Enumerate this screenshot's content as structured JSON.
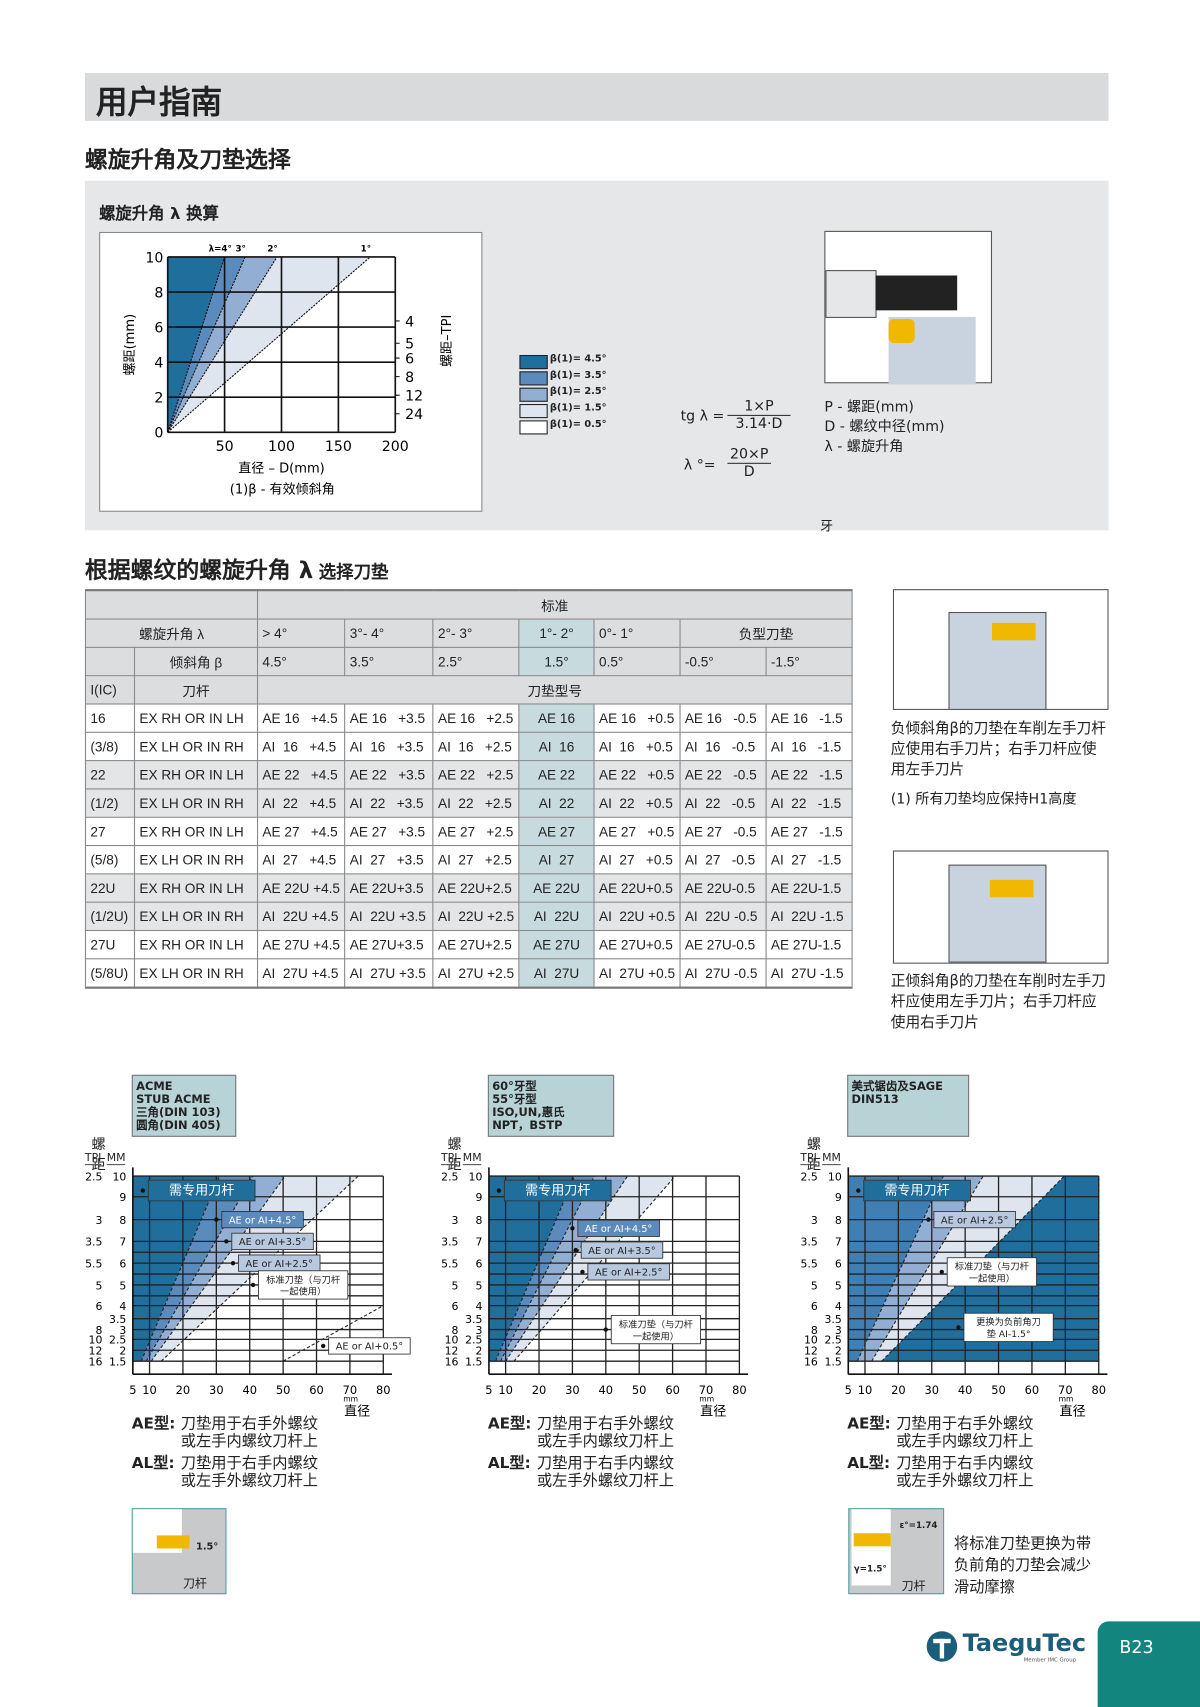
{
  "header": {
    "title": "用户指南"
  },
  "section1": {
    "title": "螺旋升角及刀垫选择",
    "subtitle": "螺旋升角 λ 换算",
    "footnote": "(1)β - 有效倾斜角",
    "formula1": {
      "lhs": "tg λ =",
      "num": "1×P",
      "den": "3.14·D"
    },
    "formula2": {
      "lhs": "λ °=",
      "num": "20×P",
      "den": "D"
    },
    "legend_defs": [
      "P - 螺距(mm)",
      "D - 螺纹中径(mm)",
      "λ - 螺旋升角"
    ],
    "stray": "牙",
    "colors": {
      "dark": "#1f6e9c",
      "mid": "#5b8bbd",
      "light": "#93aed3",
      "lightest": "#dfe5ef",
      "white": "#ffffff"
    }
  },
  "chart_data": [
    {
      "type": "area",
      "xlabel": "直径 – D(mm)",
      "ylabel": "螺距(mm)",
      "y2label": "螺距–TPI",
      "xlim": [
        0,
        200
      ],
      "ylim": [
        0,
        10
      ],
      "xticks": [
        0,
        50,
        100,
        150,
        200
      ],
      "yticks": [
        0,
        2,
        4,
        6,
        8,
        10
      ],
      "y2ticks_tpi": [
        4,
        5,
        6,
        8,
        12,
        24
      ],
      "grid": true,
      "top_labels": [
        "λ=4°",
        "3°",
        "2°",
        "1°"
      ],
      "boundaries_D_at_P10": [
        50,
        68,
        96,
        178
      ],
      "legend": [
        "β(1)= 4.5°",
        "β(1)= 3.5°",
        "β(1)= 2.5°",
        "β(1)= 1.5°",
        "β(1)= 0.5°"
      ],
      "legend_placement": "right"
    },
    {
      "type": "area",
      "thread_types": [
        "ACME",
        "STUB ACME",
        "三角(DIN 103)",
        "圆角(DIN 405)"
      ],
      "ylabel": "螺距",
      "ycols": [
        "TPI",
        "MM"
      ],
      "xunit": "mm",
      "xlabel": "直径",
      "xlim": [
        5,
        80
      ],
      "xticks": [
        5,
        10,
        20,
        30,
        40,
        50,
        60,
        70,
        80
      ],
      "yticks_mm": [
        10,
        9,
        8,
        7,
        6,
        5,
        4,
        3.5,
        3,
        2.5,
        2,
        1.5
      ],
      "yticks_tpi": [
        "2.5",
        "",
        "3",
        "3.5",
        "5.5",
        "5",
        "6",
        "",
        "8",
        "10",
        "12",
        "16"
      ],
      "regions": [
        {
          "color": "#1f6e9c",
          "points": [
            [
              5,
              1.5
            ],
            [
              7.5,
              1.5
            ],
            [
              31,
              10
            ],
            [
              5,
              10
            ]
          ]
        },
        {
          "color": "#5b8bbd",
          "points": [
            [
              7.5,
              1.5
            ],
            [
              9,
              1.5
            ],
            [
              41,
              10
            ],
            [
              31,
              10
            ]
          ]
        },
        {
          "color": "#93aed3",
          "points": [
            [
              9,
              1.5
            ],
            [
              10.5,
              1.5
            ],
            [
              50.6,
              10
            ],
            [
              41,
              10
            ]
          ]
        },
        {
          "color": "#dfe5ef",
          "points": [
            [
              10.5,
              1.5
            ],
            [
              13.5,
              1.5
            ],
            [
              72.5,
              10
            ],
            [
              50.6,
              10
            ]
          ]
        }
      ],
      "lines": [
        [
          [
            50,
            1.5
          ],
          [
            80,
            4
          ]
        ]
      ],
      "annotations": [
        "需专用刀杆",
        "AE or AI+4.5°",
        "AE or AI+3.5°",
        "AE or AI+2.5°",
        "标准刀垫（与刀杆\n一起使用）",
        "AE or AI+0.5°"
      ]
    },
    {
      "type": "area",
      "thread_types": [
        "60°牙型",
        "55°牙型",
        "ISO,UN,惠氏",
        "NPT，BSTP"
      ],
      "ylabel": "螺距",
      "ycols": [
        "TPI",
        "MM"
      ],
      "xunit": "mm",
      "xlabel": "直径",
      "xlim": [
        5,
        80
      ],
      "xticks": [
        5,
        10,
        20,
        30,
        40,
        50,
        60,
        70,
        80
      ],
      "yticks_mm": [
        10,
        9,
        8,
        7,
        6,
        5,
        4,
        3.5,
        3,
        2.5,
        2,
        1.5
      ],
      "yticks_tpi": [
        "2.5",
        "",
        "3",
        "3.5",
        "5.5",
        "5",
        "6",
        "",
        "8",
        "10",
        "12",
        "16"
      ],
      "regions": [
        {
          "color": "#1f6e9c",
          "points": [
            [
              5,
              1.5
            ],
            [
              7,
              1.5
            ],
            [
              30.7,
              10
            ],
            [
              5,
              10
            ]
          ]
        },
        {
          "color": "#5b8bbd",
          "points": [
            [
              7,
              1.5
            ],
            [
              8.5,
              1.5
            ],
            [
              36.6,
              10
            ],
            [
              30.7,
              10
            ]
          ]
        },
        {
          "color": "#93aed3",
          "points": [
            [
              8.5,
              1.5
            ],
            [
              10,
              1.5
            ],
            [
              46.5,
              10
            ],
            [
              36.6,
              10
            ]
          ]
        },
        {
          "color": "#dfe5ef",
          "points": [
            [
              10,
              1.5
            ],
            [
              12.5,
              1.5
            ],
            [
              60.8,
              10
            ],
            [
              46.5,
              10
            ]
          ]
        }
      ],
      "lines": [],
      "annotations": [
        "需专用刀杆",
        "AE or AI+4.5°",
        "AE or AI+3.5°",
        "AE or AI+2.5°",
        "标准刀垫（与刀杆\n一起使用）"
      ]
    },
    {
      "type": "area",
      "thread_types": [
        "美式锯齿及SAGE",
        "DIN513"
      ],
      "ylabel": "螺距",
      "ycols": [
        "TPI",
        "MM"
      ],
      "xunit": "mm",
      "xlabel": "直径",
      "xlim": [
        5,
        80
      ],
      "xticks": [
        5,
        10,
        20,
        30,
        40,
        50,
        60,
        70,
        80
      ],
      "yticks_mm": [
        10,
        9,
        8,
        7,
        6,
        5,
        4,
        3.5,
        3,
        2.5,
        2,
        1.5
      ],
      "yticks_tpi": [
        "2.5",
        "",
        "3",
        "3.5",
        "5.5",
        "5",
        "6",
        "",
        "8",
        "10",
        "12",
        "16"
      ],
      "regions": [
        {
          "color": "#3f7fb3",
          "points": [
            [
              5,
              1.5
            ],
            [
              7.7,
              1.5
            ],
            [
              33.5,
              10
            ],
            [
              5,
              10
            ]
          ]
        },
        {
          "color": "#93aed3",
          "points": [
            [
              7.7,
              1.5
            ],
            [
              12,
              1.5
            ],
            [
              45.4,
              10
            ],
            [
              33.5,
              10
            ]
          ]
        },
        {
          "color": "#dfe5ef",
          "points": [
            [
              12,
              1.5
            ],
            [
              15,
              1.5
            ],
            [
              69.7,
              10
            ],
            [
              45.4,
              10
            ]
          ]
        },
        {
          "color": "#1f6e9c",
          "points": [
            [
              15,
              1.5
            ],
            [
              80,
              1.5
            ],
            [
              80,
              10
            ],
            [
              69.7,
              10
            ]
          ]
        }
      ],
      "lines": [],
      "annotations": [
        "需专用刀杆",
        "AE or AI+2.5°",
        "标准刀垫（与刀杆\n一起使用）",
        "更换为负前角刀\n垫 AI-1.5°"
      ]
    }
  ],
  "section2": {
    "title_main": "根据螺纹的螺旋升角 λ",
    "title_sub": "选择刀垫",
    "header_standard": "标准",
    "row_lambda": [
      "螺旋升角 λ",
      "> 4°",
      "3°- 4°",
      "2°- 3°",
      "1°- 2°",
      "0°- 1°",
      "负型刀垫"
    ],
    "row_beta": [
      "倾斜角 β",
      "4.5°",
      "3.5°",
      "2.5°",
      "1.5°",
      "0.5°",
      "-0.5°",
      "-1.5°"
    ],
    "row_cols": [
      "I(IC)",
      "刀杆",
      "刀垫型号"
    ],
    "rows": [
      [
        "16",
        "EX RH OR IN LH",
        "AE 16   +4.5",
        "AE 16   +3.5",
        "AE 16   +2.5",
        "AE 16",
        "AE 16   +0.5",
        "AE 16   -0.5",
        "AE 16   -1.5"
      ],
      [
        "(3/8)",
        "EX LH OR IN RH",
        "AI  16   +4.5",
        "AI  16   +3.5",
        "AI  16   +2.5",
        "AI  16",
        "AI  16   +0.5",
        "AI  16   -0.5",
        "AI  16   -1.5"
      ],
      [
        "22",
        "EX RH OR IN LH",
        "AE 22   +4.5",
        "AE 22   +3.5",
        "AE 22   +2.5",
        "AE 22",
        "AE 22   +0.5",
        "AE 22   -0.5",
        "AE 22   -1.5"
      ],
      [
        "(1/2)",
        "EX LH OR IN RH",
        "AI  22   +4.5",
        "AI  22   +3.5",
        "AI  22   +2.5",
        "AI  22",
        "AI  22   +0.5",
        "AI  22   -0.5",
        "AI  22   -1.5"
      ],
      [
        "27",
        "EX RH OR IN LH",
        "AE 27   +4.5",
        "AE 27   +3.5",
        "AE 27   +2.5",
        "AE 27",
        "AE 27   +0.5",
        "AE 27   -0.5",
        "AE 27   -1.5"
      ],
      [
        "(5/8)",
        "EX LH OR IN RH",
        "AI  27   +4.5",
        "AI  27   +3.5",
        "AI  27   +2.5",
        "AI  27",
        "AI  27   +0.5",
        "AI  27   -0.5",
        "AI  27   -1.5"
      ],
      [
        "22U",
        "EX RH OR IN LH",
        "AE 22U +4.5",
        "AE 22U+3.5",
        "AE 22U+2.5",
        "AE 22U",
        "AE 22U+0.5",
        "AE 22U-0.5",
        "AE 22U-1.5"
      ],
      [
        "(1/2U)",
        "EX LH OR IN RH",
        "AI  22U +4.5",
        "AI  22U +3.5",
        "AI  22U +2.5",
        "AI  22U",
        "AI  22U +0.5",
        "AI  22U -0.5",
        "AI  22U -1.5"
      ],
      [
        "27U",
        "EX RH OR IN LH",
        "AE 27U +4.5",
        "AE 27U+3.5",
        "AE 27U+2.5",
        "AE 27U",
        "AE 27U+0.5",
        "AE 27U-0.5",
        "AE 27U-1.5"
      ],
      [
        "(5/8U)",
        "EX LH OR IN RH",
        "AI  27U +4.5",
        "AI  27U +3.5",
        "AI  27U +2.5",
        "AI  27U",
        "AI  27U +0.5",
        "AI  27U -0.5",
        "AI  27U -1.5"
      ]
    ],
    "highlight_color": "#c7dade",
    "note_negative": "负倾斜角β的刀垫在车削左手刀杆应使用右手刀片；右手刀杆应使用左手刀片",
    "note_h1": "(1) 所有刀垫均应保持H1高度",
    "note_positive": "正倾斜角β的刀垫在车削时左手刀杆应使用左手刀片；右手刀杆应使用右手刀片"
  },
  "types": {
    "ae_label": "AE型:",
    "ae_text": "刀垫用于右手外螺纹\n或左手内螺纹刀杆上",
    "al_label": "AL型:",
    "al_text": "刀垫用于右手内螺纹\n或左手外螺纹刀杆上"
  },
  "bottom": {
    "holder_label": "刀杆",
    "angle1": "1.5°",
    "angle2": "ε°=1.74",
    "angle3": "γ=1.5°",
    "note": "将标准刀垫更换为带负前角的刀垫会减少滑动摩擦"
  },
  "footer": {
    "brand": "TaeguTec",
    "brand_sub": "Member IMC Group",
    "page": "B23",
    "brand_color": "#1a5e7a",
    "page_color": "#13857f"
  }
}
